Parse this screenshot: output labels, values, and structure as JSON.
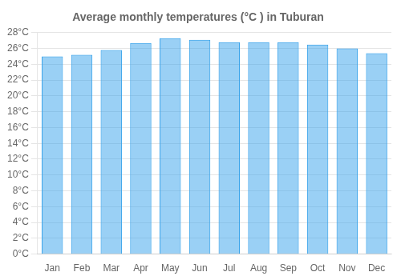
{
  "chart_data": {
    "type": "bar",
    "title": "Average monthly temperatures (°C ) in Tuburan",
    "categories": [
      "Jan",
      "Feb",
      "Mar",
      "Apr",
      "May",
      "Jun",
      "Jul",
      "Aug",
      "Sep",
      "Oct",
      "Nov",
      "Dec"
    ],
    "values": [
      25.0,
      25.2,
      25.8,
      26.7,
      27.3,
      27.1,
      26.8,
      26.8,
      26.8,
      26.5,
      26.0,
      25.4
    ],
    "ylim": [
      0,
      28
    ],
    "yticks": [
      {
        "value": 0,
        "label": "0°C"
      },
      {
        "value": 2,
        "label": "2°C"
      },
      {
        "value": 4,
        "label": "4°C"
      },
      {
        "value": 6,
        "label": "6°C"
      },
      {
        "value": 8,
        "label": "8°C"
      },
      {
        "value": 10,
        "label": "10°C"
      },
      {
        "value": 12,
        "label": "12°C"
      },
      {
        "value": 14,
        "label": "14°C"
      },
      {
        "value": 16,
        "label": "16°C"
      },
      {
        "value": 18,
        "label": "18°C"
      },
      {
        "value": 20,
        "label": "20°C"
      },
      {
        "value": 22,
        "label": "22°C"
      },
      {
        "value": 24,
        "label": "24°C"
      },
      {
        "value": 26,
        "label": "26°C"
      },
      {
        "value": 28,
        "label": "28°C"
      }
    ],
    "grid": true
  }
}
